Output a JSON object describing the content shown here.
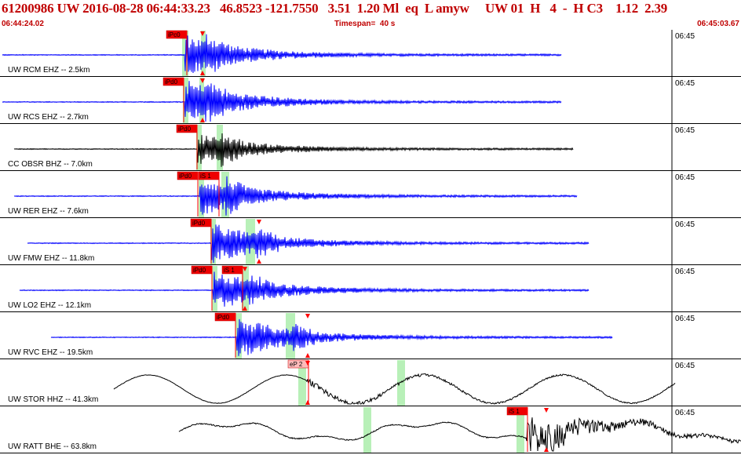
{
  "header": {
    "title": "61200986 UW 2016-08-28 06:44:33.23   46.8523 -121.7550   3.51  1.20 Ml  eq  L amyw     UW 01  H   4  -  H C3    1.12  2.39",
    "start_time": "06:44:24.02",
    "timespan": "Timespan=  40 s",
    "end_time": "06:45:03.67"
  },
  "colors": {
    "accent_red": "#c00000",
    "trace_blue": "#0000ff",
    "trace_black": "#000000",
    "pick_box": "#ee0000",
    "pick_box_light": "#ffbbbb",
    "window_green": "#b8f0b8"
  },
  "panels": [
    {
      "label": "UW RCM EHZ -- 2.5km",
      "time_tick": "06:45",
      "color": "blue",
      "picks": [
        {
          "label": "iPc0",
          "style": "solid"
        }
      ]
    },
    {
      "label": "UW RCS EHZ -- 2.7km",
      "time_tick": "06:45",
      "color": "blue",
      "picks": [
        {
          "label": "iPd0",
          "style": "solid"
        }
      ]
    },
    {
      "label": "CC OBSR BHZ -- 7.0km",
      "time_tick": "06:45",
      "color": "black",
      "picks": [
        {
          "label": "iPd0",
          "style": "solid"
        }
      ]
    },
    {
      "label": "UW RER EHZ -- 7.6km",
      "time_tick": "06:45",
      "color": "blue",
      "picks": [
        {
          "label": "iPd0",
          "style": "solid"
        },
        {
          "label": "iS 1",
          "style": "solid"
        }
      ]
    },
    {
      "label": "UW FMW EHZ -- 11.8km",
      "time_tick": "06:45",
      "color": "blue",
      "picks": [
        {
          "label": "iPd0",
          "style": "solid"
        }
      ]
    },
    {
      "label": "UW LO2 EHZ -- 12.1km",
      "time_tick": "06:45",
      "color": "blue",
      "picks": [
        {
          "label": "iPd0",
          "style": "solid"
        },
        {
          "label": "iS 1",
          "style": "solid"
        }
      ]
    },
    {
      "label": "UW RVC EHZ -- 19.5km",
      "time_tick": "06:45",
      "color": "blue",
      "picks": [
        {
          "label": "iPd0",
          "style": "solid"
        }
      ]
    },
    {
      "label": "UW STOR HHZ -- 41.3km",
      "time_tick": "06:45",
      "color": "black",
      "picks": [
        {
          "label": "eP 2",
          "style": "light"
        }
      ]
    },
    {
      "label": "UW RATT BHE -- 63.8km",
      "time_tick": "06:45",
      "color": "black",
      "picks": [
        {
          "label": "iS 1",
          "style": "solid"
        }
      ]
    }
  ]
}
